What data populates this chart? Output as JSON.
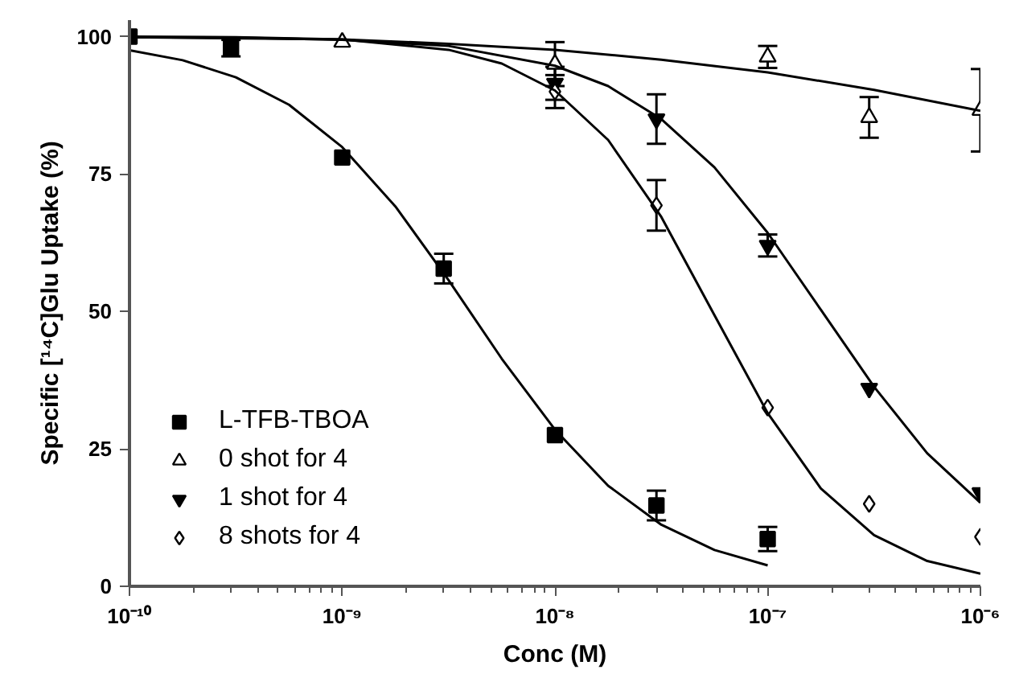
{
  "chart_data": {
    "type": "scatter",
    "xlabel": "Conc (M)",
    "ylabel": "Specific [¹⁴C]Glu Uptake (%)",
    "log": "x",
    "xlim": [
      1e-10,
      1e-06
    ],
    "xticks": [
      {
        "value": 1e-10,
        "label": "10⁻¹⁰"
      },
      {
        "value": 1e-09,
        "label": "10⁻⁹"
      },
      {
        "value": 1e-08,
        "label": "10⁻⁸"
      },
      {
        "value": 1e-07,
        "label": "10⁻⁷"
      },
      {
        "value": 1e-06,
        "label": "10⁻⁶"
      }
    ],
    "ylim": [
      0,
      103
    ],
    "yticks": [
      0,
      25,
      50,
      75,
      100
    ],
    "grid": false,
    "legend": "bottom left",
    "series": [
      {
        "name": "L-TFB-TBOA",
        "marker": "square",
        "color": "#000000",
        "x": [
          1e-10,
          3e-10,
          1e-09,
          3e-09,
          1e-08,
          3e-08,
          1e-07
        ],
        "values": [
          100,
          97.9,
          78,
          57.8,
          27.5,
          14.7,
          8.6
        ],
        "errors": [
          null,
          1.5,
          null,
          2.7,
          null,
          2.7,
          2.2
        ]
      },
      {
        "name": "0 shot for 4",
        "marker": "triangle",
        "color": "#ffffff",
        "x": [
          1e-09,
          1e-08,
          1e-07,
          3e-07,
          1e-06
        ],
        "values": [
          99,
          95,
          96.3,
          85.3,
          86.6
        ],
        "errors": [
          null,
          4,
          2,
          3.7,
          7.5
        ]
      },
      {
        "name": "1 shot for 4",
        "marker": "triangle",
        "color": "#000000",
        "x": [
          1e-08,
          3e-08,
          1e-07,
          3e-07,
          1e-06
        ],
        "values": [
          91.5,
          85,
          62,
          36,
          17
        ],
        "errors": [
          3,
          4.5,
          2,
          null,
          null
        ]
      },
      {
        "name": "8 shots for 4",
        "marker": "diamond",
        "color": "#ffffff",
        "x": [
          1e-08,
          3e-08,
          1e-07,
          3e-07,
          1e-06
        ],
        "values": [
          90,
          69.3,
          32.5,
          15,
          9
        ],
        "errors": [
          3,
          4.6,
          null,
          null,
          null
        ]
      },
      {
        "type": "line",
        "marker": "none",
        "color": "#000000",
        "x": [
          1e-10,
          1.778e-10,
          3.162e-10,
          5.623e-10,
          1e-09,
          1.778e-09,
          3.162e-09,
          5.623e-09,
          1e-08,
          1.778e-08,
          3.162e-08,
          5.623e-08,
          1e-07
        ],
        "values": [
          97.5,
          95.7,
          92.6,
          87.6,
          79.9,
          69.1,
          55.7,
          41.4,
          28.5,
          18.3,
          11.2,
          6.6,
          3.8
        ]
      },
      {
        "type": "line",
        "marker": "none",
        "color": "#000000",
        "x": [
          1e-10,
          1e-09,
          3.162e-09,
          1e-08,
          3.162e-08,
          1e-07,
          3.162e-07,
          1e-06
        ],
        "values": [
          99.9,
          99.5,
          98.7,
          97.6,
          95.8,
          93.5,
          90.3,
          86.5
        ]
      },
      {
        "type": "line",
        "marker": "none",
        "color": "#000000",
        "x": [
          1e-10,
          3.162e-10,
          1e-09,
          3.162e-09,
          1e-08,
          1.778e-08,
          3.162e-08,
          5.623e-08,
          1e-07,
          1.778e-07,
          3.162e-07,
          5.623e-07,
          1e-06
        ],
        "values": [
          99.9,
          99.8,
          99.4,
          98.3,
          94.7,
          91.0,
          85.0,
          76.2,
          64.3,
          50.3,
          36.3,
          24.2,
          15.2
        ]
      },
      {
        "type": "line",
        "marker": "none",
        "color": "#000000",
        "x": [
          1e-10,
          3.162e-10,
          1e-09,
          3.162e-09,
          5.623e-09,
          1e-08,
          1.778e-08,
          3.162e-08,
          5.623e-08,
          1e-07,
          1.778e-07,
          3.162e-07,
          5.623e-07,
          1e-06
        ],
        "values": [
          100.0,
          99.9,
          99.5,
          97.6,
          95.1,
          90.2,
          81.2,
          67.2,
          49.3,
          31.5,
          17.8,
          9.3,
          4.6,
          2.3
        ]
      }
    ]
  }
}
